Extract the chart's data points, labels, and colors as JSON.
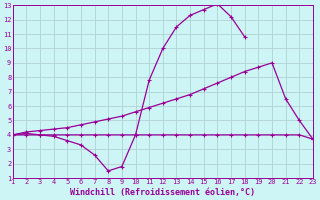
{
  "x_values": [
    1,
    2,
    3,
    4,
    5,
    6,
    7,
    8,
    9,
    10,
    11,
    12,
    13,
    14,
    15,
    16,
    17,
    18,
    19,
    20,
    21,
    22,
    23
  ],
  "line_peak": [
    4.0,
    4.1,
    4.0,
    3.9,
    3.6,
    3.3,
    2.6,
    1.5,
    1.8,
    4.0,
    7.8,
    10.0,
    11.5,
    12.3,
    12.7,
    13.1,
    12.2,
    10.8,
    null,
    null,
    null,
    null,
    null
  ],
  "line_rising": [
    4.0,
    4.2,
    4.3,
    4.4,
    4.5,
    4.7,
    4.9,
    5.1,
    5.3,
    5.6,
    5.9,
    6.2,
    6.5,
    6.8,
    7.2,
    7.6,
    8.0,
    8.4,
    8.7,
    9.0,
    6.5,
    5.0,
    3.7
  ],
  "line_flat": [
    4.0,
    4.0,
    4.0,
    4.0,
    4.0,
    4.0,
    4.0,
    4.0,
    4.0,
    4.0,
    4.0,
    4.0,
    4.0,
    4.0,
    4.0,
    4.0,
    4.0,
    4.0,
    4.0,
    4.0,
    4.0,
    4.0,
    3.7
  ],
  "color": "#990099",
  "bg_color": "#cef5f5",
  "grid_color": "#aacccc",
  "xlabel": "Windchill (Refroidissement éolien,°C)",
  "ylim": [
    1,
    13
  ],
  "xlim": [
    1,
    23
  ],
  "yticks": [
    1,
    2,
    3,
    4,
    5,
    6,
    7,
    8,
    9,
    10,
    11,
    12,
    13
  ],
  "xticks": [
    1,
    2,
    3,
    4,
    5,
    6,
    7,
    8,
    9,
    10,
    11,
    12,
    13,
    14,
    15,
    16,
    17,
    18,
    19,
    20,
    21,
    22,
    23
  ],
  "tick_fontsize": 5.0,
  "xlabel_fontsize": 6.0
}
